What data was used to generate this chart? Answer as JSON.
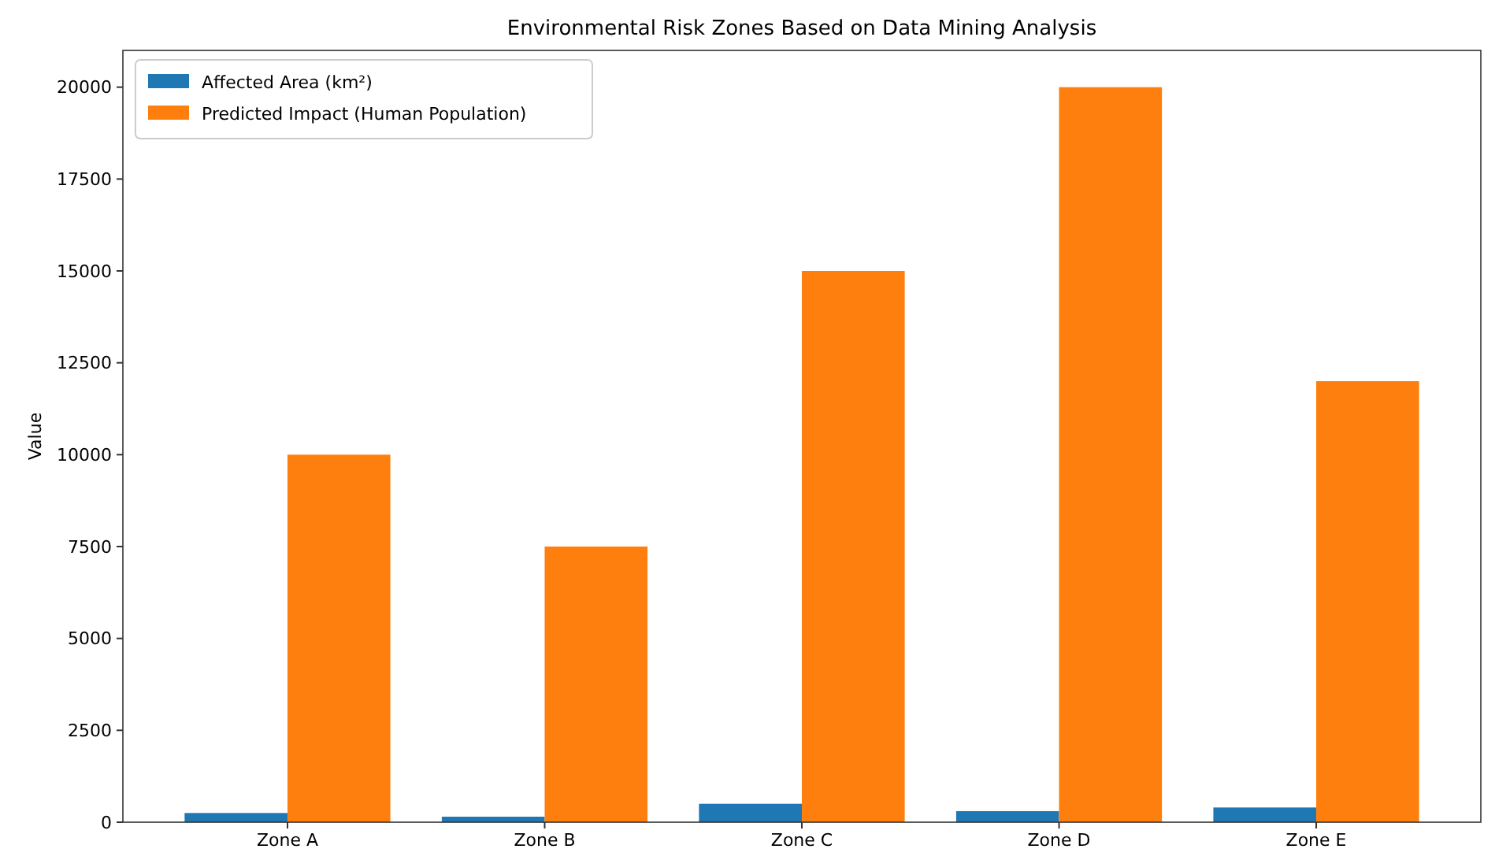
{
  "chart_data": {
    "type": "bar",
    "title": "Environmental Risk Zones Based on Data Mining Analysis",
    "ylabel": "Value",
    "categories": [
      "Zone A",
      "Zone B",
      "Zone C",
      "Zone D",
      "Zone E"
    ],
    "series": [
      {
        "name": "Affected Area (km²)",
        "color": "#1f77b4",
        "values": [
          250,
          150,
          500,
          300,
          400
        ]
      },
      {
        "name": "Predicted Impact (Human Population)",
        "color": "#ff7f0e",
        "values": [
          10000,
          7500,
          15000,
          20000,
          12000
        ]
      }
    ],
    "ylim": [
      0,
      21000
    ],
    "yticks": [
      0,
      2500,
      5000,
      7500,
      10000,
      12500,
      15000,
      17500,
      20000
    ],
    "grid": false,
    "legend": "top left"
  }
}
